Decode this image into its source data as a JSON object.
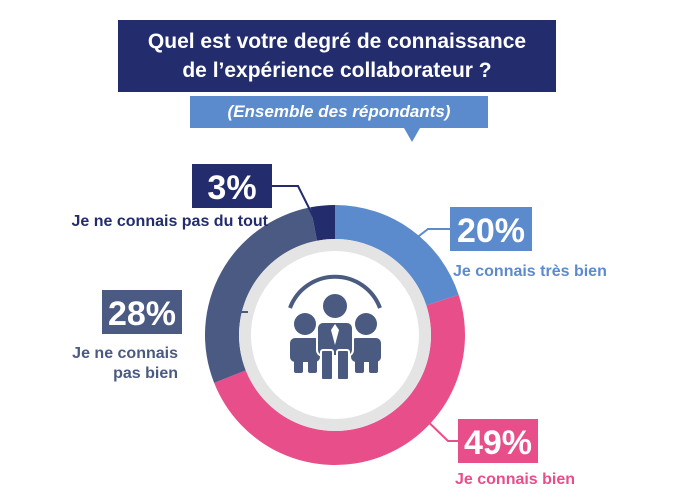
{
  "title_line1": "Quel est votre degré de connaissance",
  "title_line2": "de l’expérience collaborateur ?",
  "subtitle": "(Ensemble des répondants)",
  "colors": {
    "title_bg": "#232d6e",
    "subtitle_bg": "#5c8bcd",
    "icon": "#4a5a80",
    "ring_inner": "#e4e4e4"
  },
  "chart_data": {
    "type": "pie",
    "donut": true,
    "slices": [
      {
        "label": "Je connais très bien",
        "value": 20,
        "pct": "20%",
        "color": "#5c8bcd"
      },
      {
        "label": "Je connais bien",
        "value": 49,
        "pct": "49%",
        "color": "#e84e8a"
      },
      {
        "label": "Je ne connais pas bien",
        "label_line1": "Je ne connais",
        "label_line2": "pas bien",
        "value": 28,
        "pct": "28%",
        "color": "#4b5a82"
      },
      {
        "label": "Je ne connais pas du tout",
        "value": 3,
        "pct": "3%",
        "color": "#232d6e"
      }
    ]
  }
}
